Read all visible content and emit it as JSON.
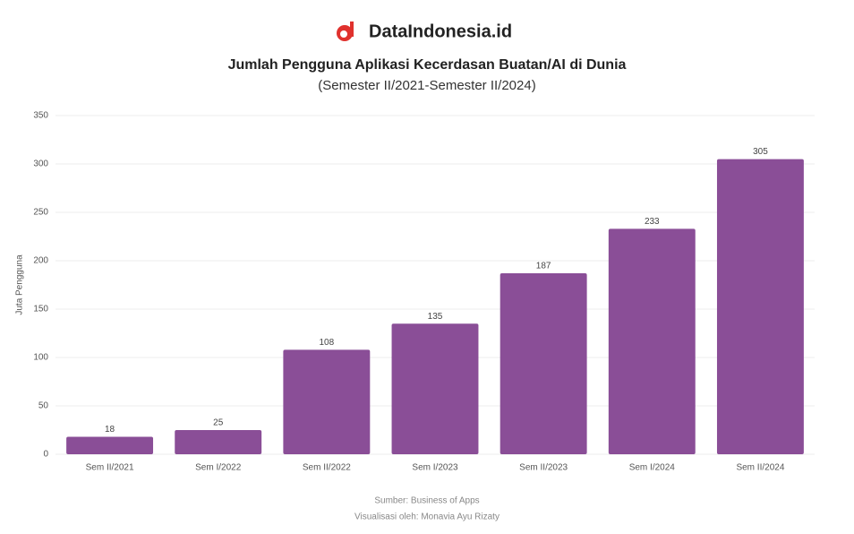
{
  "header": {
    "brand": "DataIndonesia.id"
  },
  "chart_data": {
    "type": "bar",
    "title": "Jumlah Pengguna Aplikasi Kecerdasan Buatan/AI di Dunia",
    "subtitle": "(Semester II/2021-Semester II/2024)",
    "y_label": "Juta Pengguna",
    "categories": [
      "Sem II/2021",
      "Sem I/2022",
      "Sem II/2022",
      "Sem I/2023",
      "Sem II/2023",
      "Sem I/2024",
      "Sem II/2024"
    ],
    "values": [
      18,
      25,
      108,
      135,
      187,
      233,
      305
    ],
    "color": "#8a4e97",
    "ylim": [
      0,
      350
    ],
    "yticks": [
      0,
      50,
      100,
      150,
      200,
      250,
      300,
      350
    ],
    "grid": true,
    "source": "Sumber: Business of Apps",
    "credit": "Visualisasi oleh: Monavia Ayu Rizaty"
  }
}
